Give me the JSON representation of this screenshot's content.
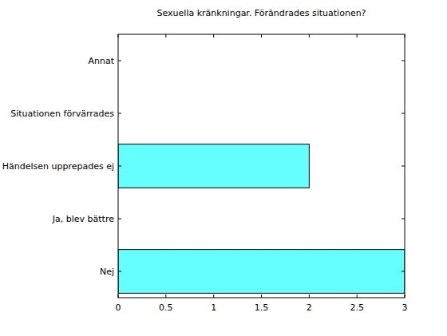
{
  "chart_data": {
    "type": "bar",
    "orientation": "horizontal",
    "title": "Sexuella kränkningar. Förändrades situationen?",
    "categories": [
      "Nej",
      "Ja, blev bättre",
      "Händelsen upprepades ej",
      "Situationen förvärrades",
      "Annat"
    ],
    "values": [
      3,
      0,
      2,
      0,
      0
    ],
    "color": "#66ffff",
    "xlim": [
      0,
      3
    ],
    "xticks": [
      0,
      0.5,
      1,
      1.5,
      2,
      2.5,
      3
    ],
    "grid": false
  }
}
